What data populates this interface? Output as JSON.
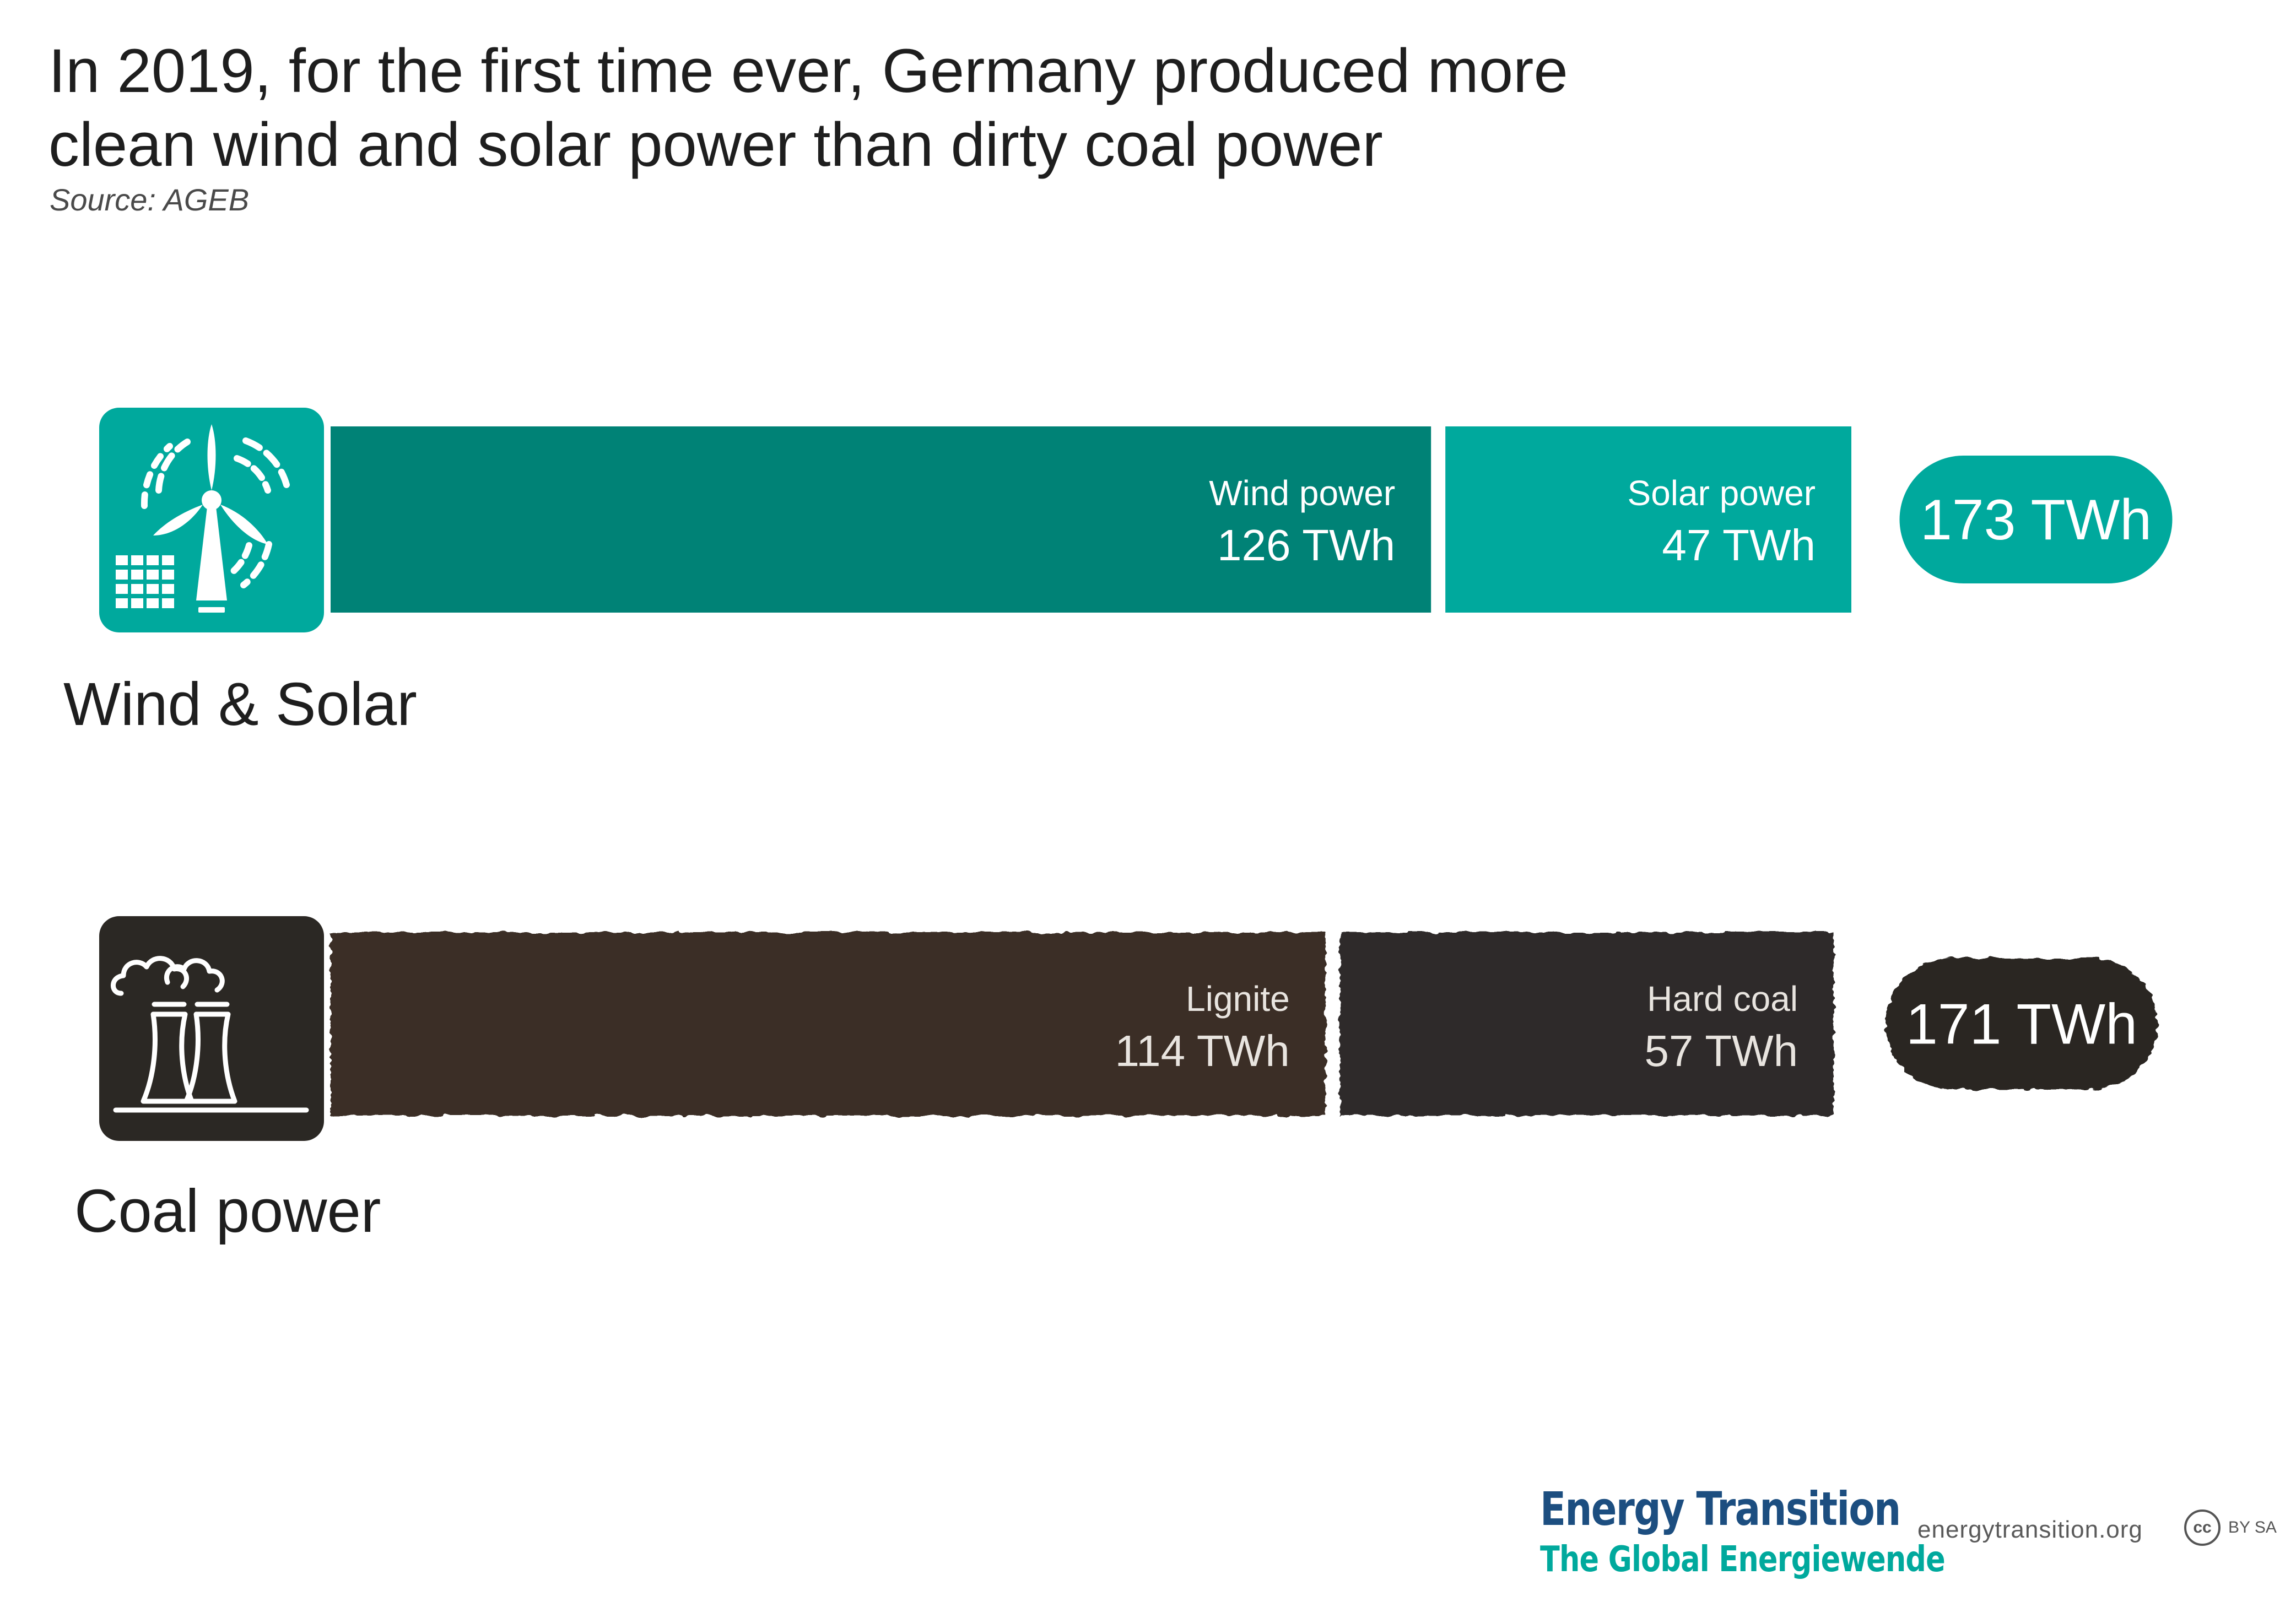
{
  "title": {
    "line1": "In 2019, for the first time ever, Germany produced more",
    "line2": "clean wind and solar power than dirty coal power"
  },
  "source": "Source:  AGEB",
  "colors": {
    "wind": "#008276",
    "solar": "#00a99d",
    "ws_total": "#00a99d",
    "lignite": "#3a2f27",
    "hard_coal": "#2d2b29",
    "coal_total": "#2b2824",
    "label_light": "#e8e4df",
    "logo_blue": "#1c4e80",
    "logo_teal": "#00a99d"
  },
  "icons": {
    "wind_solar": "wind-turbine-solar-icon",
    "coal": "cooling-tower-icon"
  },
  "chart_data": {
    "type": "bar",
    "orientation": "horizontal",
    "stacked": true,
    "unit": "TWh",
    "categories": [
      "Wind & Solar",
      "Coal power"
    ],
    "series": [
      {
        "category": "Wind & Solar",
        "total_label": "173 TWh",
        "total": 173,
        "segments": [
          {
            "name": "Wind power",
            "value": 126,
            "value_label": "126 TWh",
            "color": "#008276"
          },
          {
            "name": "Solar power",
            "value": 47,
            "value_label": "47 TWh",
            "color": "#00a99d"
          }
        ]
      },
      {
        "category": "Coal power",
        "total_label": "171 TWh",
        "total": 171,
        "segments": [
          {
            "name": "Lignite",
            "value": 114,
            "value_label": "114 TWh",
            "color": "#3a2f27"
          },
          {
            "name": "Hard coal",
            "value": 57,
            "value_label": "57 TWh",
            "color": "#2d2b29"
          }
        ]
      }
    ]
  },
  "footer": {
    "logo_line1": "Energy Transition",
    "logo_line2": "The Global Energiewende",
    "url": "energytransition.org",
    "license_symbol": "cc",
    "license_text": "BY SA"
  }
}
